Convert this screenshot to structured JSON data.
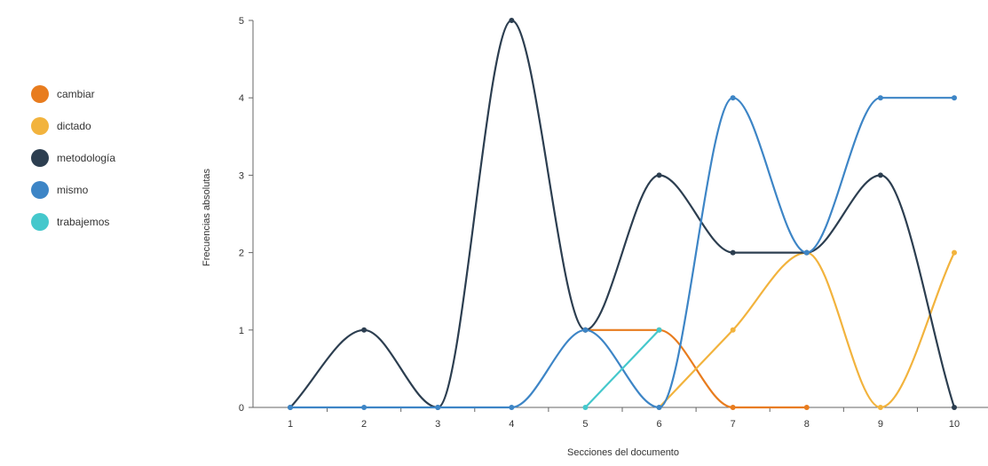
{
  "chart_data": {
    "type": "line",
    "smooth": true,
    "xlabel": "Secciones del documento",
    "ylabel": "Frecuencias absolutas",
    "x": [
      1,
      2,
      3,
      4,
      5,
      6,
      7,
      8,
      9,
      10
    ],
    "xlim": [
      1,
      10
    ],
    "ylim": [
      0,
      5
    ],
    "y_ticks": [
      0,
      1,
      2,
      3,
      4,
      5
    ],
    "grid": false,
    "legend_position": "left",
    "series": [
      {
        "name": "cambiar",
        "color": "#E87C1E",
        "values": [
          null,
          null,
          null,
          null,
          1,
          1,
          0,
          0,
          null,
          null
        ]
      },
      {
        "name": "dictado",
        "color": "#F2B33D",
        "values": [
          null,
          null,
          null,
          null,
          null,
          0,
          1,
          2,
          0,
          2
        ]
      },
      {
        "name": "metodología",
        "color": "#2C3E50",
        "values": [
          0,
          1,
          0,
          5,
          1,
          3,
          2,
          2,
          3,
          0
        ]
      },
      {
        "name": "mismo",
        "color": "#3D85C6",
        "values": [
          0,
          0,
          0,
          0,
          1,
          0,
          4,
          2,
          4,
          4
        ]
      },
      {
        "name": "trabajemos",
        "color": "#45C8CC",
        "values": [
          null,
          null,
          null,
          null,
          0,
          1,
          null,
          null,
          null,
          null
        ]
      }
    ]
  }
}
